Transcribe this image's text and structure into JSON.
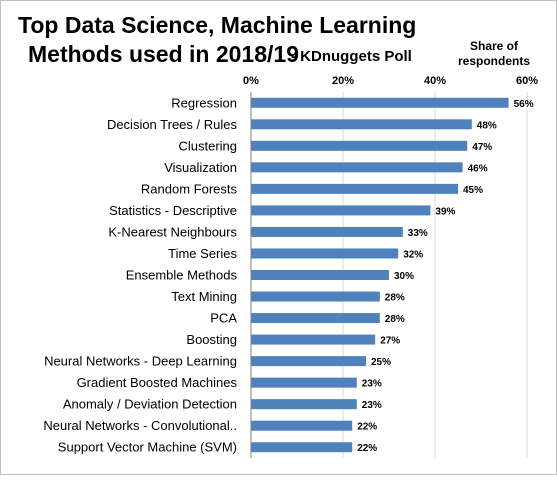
{
  "chart_data": {
    "type": "bar",
    "orientation": "horizontal",
    "title_line1": "Top Data Science, Machine Learning",
    "title_line2": "Methods used in 2018/19",
    "subtitle": "- KDnuggets Poll",
    "axis_label_line1": "Share of",
    "axis_label_line2": "respondents",
    "xlim": [
      0,
      60
    ],
    "ticks": [
      {
        "value": 0,
        "label": "0%"
      },
      {
        "value": 20,
        "label": "20%"
      },
      {
        "value": 40,
        "label": "40%"
      },
      {
        "value": 60,
        "label": "60%"
      }
    ],
    "grid": true,
    "bar_color": "#4F81BD",
    "categories": [
      "Regression",
      "Decision Trees / Rules",
      "Clustering",
      "Visualization",
      "Random Forests",
      "Statistics - Descriptive",
      "K-Nearest Neighbours",
      "Time Series",
      "Ensemble Methods",
      "Text Mining",
      "PCA",
      "Boosting",
      "Neural Networks - Deep Learning",
      "Gradient Boosted Machines",
      "Anomaly / Deviation Detection",
      "Neural Networks - Convolutional..",
      "Support Vector Machine (SVM)"
    ],
    "values": [
      56,
      48,
      47,
      46,
      45,
      39,
      33,
      32,
      30,
      28,
      28,
      27,
      25,
      23,
      23,
      22,
      22
    ],
    "value_labels": [
      "56%",
      "48%",
      "47%",
      "46%",
      "45%",
      "39%",
      "33%",
      "32%",
      "30%",
      "28%",
      "28%",
      "27%",
      "25%",
      "23%",
      "23%",
      "22%",
      "22%"
    ]
  }
}
